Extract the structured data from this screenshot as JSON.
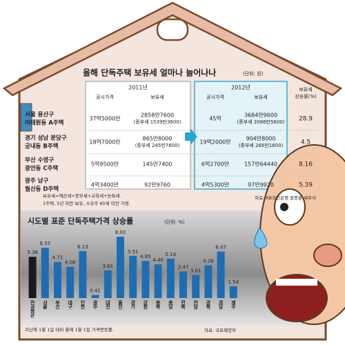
{
  "table": {
    "title": "올해 단독주택 보유세 얼마나 늘어나나",
    "unit": "(단위: 원)",
    "years": [
      "2011년",
      "2012년"
    ],
    "subheaders": [
      "공시가격",
      "보유세",
      "공시가격",
      "보유세"
    ],
    "rate_header": [
      "보유세",
      "상승률(%)"
    ],
    "rows": [
      {
        "name": [
          "서울 용산구",
          "이태원동 A주택"
        ],
        "cells": [
          "37억5000만",
          [
            "2858만7600",
            "(종부세 1539만3600)"
          ],
          "45억",
          [
            "3684만9600",
            "(종부세 2086만5600)"
          ]
        ],
        "rate": 28.9
      },
      {
        "name": [
          "경기 성남 분당구",
          "궁내동 B주택"
        ],
        "cells": [
          "18억7000만",
          [
            "865만8000",
            "(종부세 245만7600)"
          ],
          "19억2000만",
          [
            "904만8000",
            "(종부세 266만1600)"
          ]
        ],
        "rate": 4.5
      },
      {
        "name": [
          "부산 수영구",
          "광안동 C주택"
        ],
        "cells": [
          "5억9500만",
          [
            "145만7400"
          ],
          "6억2700만",
          [
            "157만64440"
          ]
        ],
        "rate": 8.16
      },
      {
        "name": [
          "광주 남구",
          "월산동 D주택"
        ],
        "cells": [
          "4억3400만",
          [
            "92만9760"
          ],
          "4억5300만",
          [
            "97만9920"
          ]
        ],
        "rate": 5.39
      }
    ],
    "notes": [
      "보유세=재산세+종부세+교육세+농특세.",
      "1주택, 5년 미만 보유, 소유주 60세 미만 가정."
    ],
    "source": "자료: KB국민은행 원종훈 세무사"
  },
  "chart_data": {
    "type": "bar",
    "title": "시도별 표준 단독주택가격 상승률",
    "unit": "(단위: %)",
    "categories": [
      "전국평균",
      "서울",
      "부산",
      "대구",
      "인천",
      "광주",
      "대전",
      "울산",
      "경기",
      "강원",
      "충북",
      "충남",
      "전북",
      "전남",
      "경북",
      "경남",
      "제주"
    ],
    "values": [
      5.38,
      6.55,
      4.71,
      4.08,
      6.13,
      0.41,
      3.61,
      8.0,
      5.51,
      4.85,
      4.4,
      5.14,
      3.47,
      3.01,
      4.28,
      6.07,
      1.54
    ],
    "value_labels": [
      "5.38",
      "6.55",
      "4.71",
      "4.08",
      "6.13",
      "0.41",
      "3.61",
      "8.00",
      "5.51",
      "4.85",
      "4.40",
      "5.14",
      "3.47",
      "3.01",
      "4.28",
      "6.07",
      "1.54"
    ],
    "colors": [
      "#1a1a1a",
      "#1e6db4",
      "#1e6db4",
      "#1e6db4",
      "#1e6db4",
      "#1e6db4",
      "#1e6db4",
      "#1e6db4",
      "#1e6db4",
      "#1e6db4",
      "#1e6db4",
      "#1e6db4",
      "#1e6db4",
      "#1e6db4",
      "#1e6db4",
      "#1e6db4",
      "#1e6db4"
    ],
    "ylim": [
      0,
      9
    ],
    "note": "지난해 1월 1일 대비 올해 1월 1일 가격변동률.",
    "source": "자료: 국토해양부"
  }
}
